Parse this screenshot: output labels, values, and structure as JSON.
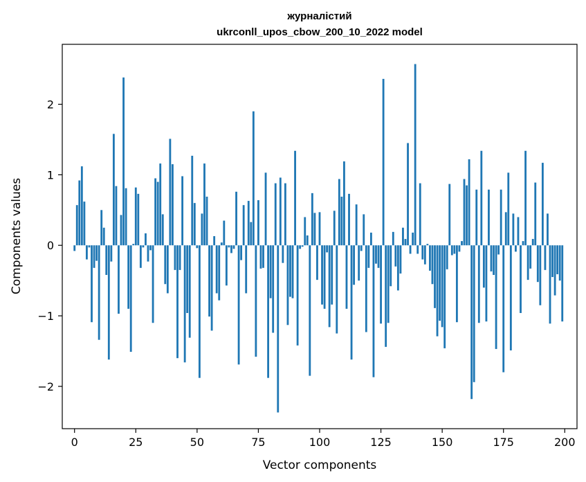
{
  "chart_data": {
    "type": "bar",
    "title": "журналістий",
    "subtitle": "ukrconll_upos_cbow_200_10_2022 model",
    "xlabel": "Vector components",
    "ylabel": "Components values",
    "xlim": [
      -5,
      205
    ],
    "ylim": [
      -2.6,
      2.85
    ],
    "xticks": [
      0,
      25,
      50,
      75,
      100,
      125,
      150,
      175,
      200
    ],
    "yticks": [
      -2,
      -1,
      0,
      1,
      2
    ],
    "ytick_labels": [
      "−2",
      "−1",
      "0",
      "1",
      "2"
    ],
    "grid": false,
    "legend": "none",
    "bar_color": "#1f77b4",
    "x": [
      0,
      1,
      2,
      3,
      4,
      5,
      6,
      7,
      8,
      9,
      10,
      11,
      12,
      13,
      14,
      15,
      16,
      17,
      18,
      19,
      20,
      21,
      22,
      23,
      24,
      25,
      26,
      27,
      28,
      29,
      30,
      31,
      32,
      33,
      34,
      35,
      36,
      37,
      38,
      39,
      40,
      41,
      42,
      43,
      44,
      45,
      46,
      47,
      48,
      49,
      50,
      51,
      52,
      53,
      54,
      55,
      56,
      57,
      58,
      59,
      60,
      61,
      62,
      63,
      64,
      65,
      66,
      67,
      68,
      69,
      70,
      71,
      72,
      73,
      74,
      75,
      76,
      77,
      78,
      79,
      80,
      81,
      82,
      83,
      84,
      85,
      86,
      87,
      88,
      89,
      90,
      91,
      92,
      93,
      94,
      95,
      96,
      97,
      98,
      99,
      100,
      101,
      102,
      103,
      104,
      105,
      106,
      107,
      108,
      109,
      110,
      111,
      112,
      113,
      114,
      115,
      116,
      117,
      118,
      119,
      120,
      121,
      122,
      123,
      124,
      125,
      126,
      127,
      128,
      129,
      130,
      131,
      132,
      133,
      134,
      135,
      136,
      137,
      138,
      139,
      140,
      141,
      142,
      143,
      144,
      145,
      146,
      147,
      148,
      149,
      150,
      151,
      152,
      153,
      154,
      155,
      156,
      157,
      158,
      159,
      160,
      161,
      162,
      163,
      164,
      165,
      166,
      167,
      168,
      169,
      170,
      171,
      172,
      173,
      174,
      175,
      176,
      177,
      178,
      179,
      180,
      181,
      182,
      183,
      184,
      185,
      186,
      187,
      188,
      189,
      190,
      191,
      192,
      193,
      194,
      195,
      196,
      197,
      198,
      199
    ],
    "values": [
      -0.08,
      0.57,
      0.92,
      1.12,
      0.62,
      -0.2,
      -0.03,
      -1.09,
      -0.32,
      -0.22,
      -1.34,
      0.5,
      0.25,
      -0.42,
      -1.62,
      -0.23,
      1.58,
      0.84,
      -0.97,
      0.43,
      2.38,
      0.81,
      -0.9,
      -1.51,
      0.02,
      0.82,
      0.73,
      -0.32,
      -0.03,
      0.17,
      -0.23,
      -0.07,
      -1.1,
      0.95,
      0.9,
      1.16,
      0.44,
      -0.55,
      -0.68,
      1.51,
      1.15,
      -0.35,
      -1.6,
      -0.35,
      0.98,
      -1.66,
      -0.96,
      -1.31,
      1.27,
      0.6,
      -0.04,
      -1.88,
      0.45,
      1.16,
      0.69,
      -1.01,
      -1.21,
      0.13,
      -0.68,
      -0.78,
      0.04,
      0.35,
      -0.57,
      -0.03,
      -0.11,
      -0.05,
      0.76,
      -1.69,
      -0.21,
      0.57,
      -0.68,
      0.63,
      0.33,
      1.9,
      -1.58,
      0.64,
      -0.33,
      -0.32,
      1.03,
      -1.88,
      -0.75,
      -1.24,
      0.88,
      -2.37,
      0.96,
      -0.25,
      0.88,
      -1.13,
      -0.73,
      -0.75,
      1.34,
      -1.42,
      -0.05,
      -0.02,
      0.4,
      0.14,
      -1.85,
      0.74,
      0.46,
      -0.49,
      0.47,
      -0.84,
      -0.9,
      -0.1,
      -1.16,
      -0.84,
      0.49,
      -1.25,
      0.94,
      0.69,
      1.19,
      -0.9,
      0.73,
      -1.62,
      -0.56,
      0.58,
      -0.5,
      -0.08,
      0.44,
      -1.23,
      -0.32,
      0.18,
      -1.87,
      -0.26,
      -0.32,
      -1.11,
      2.36,
      -1.44,
      -1.1,
      -0.58,
      0.19,
      -0.3,
      -0.64,
      -0.4,
      0.25,
      0.09,
      1.45,
      -0.12,
      0.18,
      2.57,
      -0.12,
      0.88,
      -0.2,
      -0.27,
      0.02,
      -0.36,
      -0.55,
      -0.89,
      -1.29,
      -1.07,
      -1.16,
      -1.46,
      -0.34,
      0.87,
      -0.14,
      -0.12,
      -1.09,
      -0.09,
      0.06,
      0.94,
      0.85,
      1.22,
      -2.18,
      -1.94,
      0.79,
      -1.1,
      1.34,
      -0.6,
      -1.08,
      0.79,
      -0.37,
      -0.42,
      -1.47,
      -0.13,
      0.79,
      -1.8,
      0.47,
      1.03,
      -1.49,
      0.45,
      -0.09,
      0.4,
      -0.96,
      0.06,
      1.34,
      -0.49,
      -0.33,
      0.09,
      0.89,
      -0.52,
      -0.85,
      1.17,
      -0.35,
      0.45,
      -1.11,
      -0.45,
      -0.71,
      -0.41,
      -0.5,
      -1.08
    ]
  }
}
